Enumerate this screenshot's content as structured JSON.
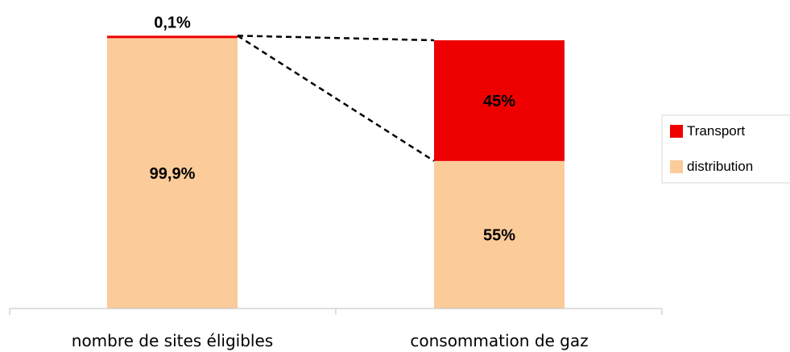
{
  "chart_data": {
    "type": "bar",
    "stacked": true,
    "normalized_percent": true,
    "categories": [
      "nombre de sites éligibles",
      "consommation de gaz"
    ],
    "series": [
      {
        "name": "distribution",
        "values": [
          99.9,
          55
        ],
        "labels": [
          "99,9%",
          "55%"
        ],
        "color": "#FBCB9A"
      },
      {
        "name": "Transport",
        "values": [
          0.1,
          45
        ],
        "labels": [
          "0,1%",
          "45%"
        ],
        "color": "#EE0000"
      }
    ],
    "legend": {
      "placement": "right",
      "entries": [
        "Transport",
        "distribution"
      ]
    },
    "connector_lines": "dashed",
    "ylim": [
      0,
      100
    ],
    "grid": false
  }
}
